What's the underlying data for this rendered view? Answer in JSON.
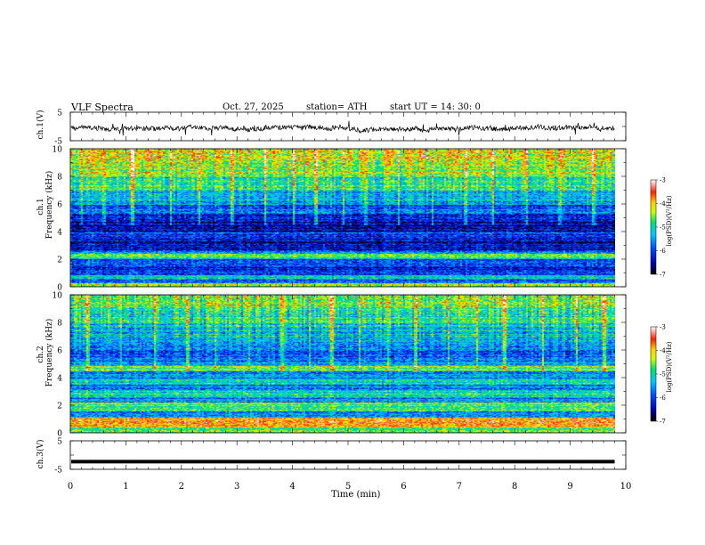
{
  "header": {
    "title": "VLF  Spectra",
    "date": "Oct. 27, 2025",
    "station": "station= ATH",
    "start": "start  UT  =   14: 30: 0"
  },
  "chart_data": {
    "type": "heatmap",
    "xlabel": "Time  (min)",
    "xlim": [
      0,
      10
    ],
    "xticks": [
      "0",
      "1",
      "2",
      "3",
      "4",
      "5",
      "6",
      "7",
      "8",
      "9",
      "10"
    ],
    "panels": {
      "ch1_wave": {
        "label": "ch.1(V)",
        "ylim": [
          -5,
          5
        ],
        "yticks": [
          "5",
          "-5"
        ],
        "data_end_min": 9.8
      },
      "ch1_spec": {
        "label": "ch.1",
        "ylabel": "Frequency  (kHz)",
        "ylim": [
          0,
          10
        ],
        "yticks": [
          "10",
          "8",
          "6",
          "4",
          "2",
          "0"
        ],
        "bands": [
          {
            "from": 0.0,
            "to": 0.3,
            "v": -4.3
          },
          {
            "from": 0.3,
            "to": 0.6,
            "v": -6.0
          },
          {
            "from": 0.6,
            "to": 0.9,
            "v": -5.0
          },
          {
            "from": 0.9,
            "to": 1.2,
            "v": -6.0
          },
          {
            "from": 1.2,
            "to": 1.6,
            "v": -6.2
          },
          {
            "from": 1.6,
            "to": 2.0,
            "v": -6.0
          },
          {
            "from": 2.0,
            "to": 2.4,
            "v": -4.8
          },
          {
            "from": 2.4,
            "to": 2.7,
            "v": -5.7
          },
          {
            "from": 2.7,
            "to": 3.3,
            "v": -6.4
          },
          {
            "from": 3.3,
            "to": 3.7,
            "v": -6.3
          },
          {
            "from": 3.7,
            "to": 4.0,
            "v": -6.0
          },
          {
            "from": 4.0,
            "to": 4.8,
            "v": -6.5
          },
          {
            "from": 4.8,
            "to": 5.3,
            "v": -6.2
          },
          {
            "from": 5.3,
            "to": 6.0,
            "v": -5.8
          },
          {
            "from": 6.0,
            "to": 7.0,
            "v": -5.3
          },
          {
            "from": 7.0,
            "to": 8.0,
            "v": -4.9
          },
          {
            "from": 8.0,
            "to": 9.0,
            "v": -4.5
          },
          {
            "from": 9.0,
            "to": 10.0,
            "v": -4.2
          }
        ],
        "bursts_min": [
          0.2,
          0.6,
          1.1,
          1.8,
          2.3,
          2.9,
          3.5,
          4.0,
          4.4,
          4.9,
          5.3,
          5.9,
          6.5,
          7.1,
          7.6,
          8.2,
          8.8,
          9.4
        ],
        "colorbar": {
          "label": "log(PSD)(V²/Hz)",
          "range": [
            -7,
            -3
          ],
          "ticks": [
            "-3",
            "-4",
            "-5",
            "-6",
            "-7"
          ]
        }
      },
      "ch2_spec": {
        "label": "ch.2",
        "ylabel": "Frequency  (kHz)",
        "ylim": [
          0,
          10
        ],
        "yticks": [
          "10",
          "8",
          "6",
          "4",
          "2",
          "0"
        ],
        "bands": [
          {
            "from": 0.0,
            "to": 0.4,
            "v": -4.8
          },
          {
            "from": 0.4,
            "to": 1.1,
            "v": -3.8
          },
          {
            "from": 1.1,
            "to": 1.6,
            "v": -5.6
          },
          {
            "from": 1.6,
            "to": 2.2,
            "v": -4.6
          },
          {
            "from": 2.2,
            "to": 2.6,
            "v": -5.7
          },
          {
            "from": 2.6,
            "to": 3.1,
            "v": -5.0
          },
          {
            "from": 3.1,
            "to": 3.5,
            "v": -5.8
          },
          {
            "from": 3.5,
            "to": 3.9,
            "v": -5.1
          },
          {
            "from": 3.9,
            "to": 4.5,
            "v": -5.6
          },
          {
            "from": 4.5,
            "to": 4.9,
            "v": -4.6
          },
          {
            "from": 4.9,
            "to": 5.2,
            "v": -5.3
          },
          {
            "from": 5.2,
            "to": 6.0,
            "v": -5.9
          },
          {
            "from": 6.0,
            "to": 7.0,
            "v": -5.6
          },
          {
            "from": 7.0,
            "to": 8.0,
            "v": -5.2
          },
          {
            "from": 8.0,
            "to": 9.0,
            "v": -4.9
          },
          {
            "from": 9.0,
            "to": 10.0,
            "v": -4.6
          }
        ],
        "bursts_min": [
          0.3,
          0.9,
          1.5,
          2.1,
          2.6,
          3.2,
          3.8,
          4.3,
          4.7,
          5.2,
          5.7,
          6.2,
          6.8,
          7.3,
          7.8,
          8.5,
          9.1,
          9.6
        ],
        "colorbar": {
          "label": "log(PSD)(V²/Hz)",
          "range": [
            -7,
            -3
          ],
          "ticks": [
            "-3",
            "-4",
            "-5",
            "-6",
            "-7"
          ]
        }
      },
      "ch3_wave": {
        "label": "ch.3(V)",
        "ylim": [
          -5,
          5
        ],
        "yticks": [
          "5",
          "-5"
        ],
        "level": -2.3,
        "data_end_min": 9.8
      }
    },
    "data_end_min": 9.8
  }
}
